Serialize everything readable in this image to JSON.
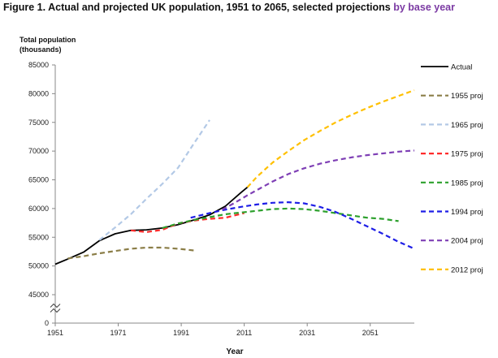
{
  "title_main": "Figure 1. Actual and projected UK population, 1951 to 2065, selected projections ",
  "title_highlight": "by base year",
  "chart_data": {
    "type": "line",
    "ylabel_line1": "Total population",
    "ylabel_line2": "(thousands)",
    "xlabel": "Year",
    "xlim": [
      1951,
      2065
    ],
    "ylim": [
      40000,
      85000
    ],
    "y_axis_break": true,
    "y_ticks": [
      0,
      45000,
      50000,
      55000,
      60000,
      65000,
      70000,
      75000,
      80000,
      85000
    ],
    "y_tick_labels": [
      "0",
      "45000",
      "50000",
      "55000",
      "60000",
      "65000",
      "70000",
      "75000",
      "80000",
      "85000"
    ],
    "x_ticks": [
      1951,
      1971,
      1991,
      2011,
      2031,
      2051
    ],
    "x_tick_labels": [
      "1951",
      "1971",
      "1991",
      "2011",
      "2031",
      "2051"
    ],
    "grid": false,
    "legend_position": "right",
    "series": [
      {
        "name": "Actual",
        "color": "#000000",
        "dash": "solid",
        "x": [
          1951,
          1955,
          1960,
          1965,
          1970,
          1975,
          1980,
          1985,
          1990,
          1995,
          2000,
          2005,
          2010,
          2012
        ],
        "y": [
          50300,
          51200,
          52400,
          54400,
          55600,
          56200,
          56300,
          56600,
          57200,
          58000,
          58900,
          60400,
          62800,
          63700
        ]
      },
      {
        "name": "1955 proj",
        "color": "#8b7e48",
        "dash": "dashed",
        "x": [
          1955,
          1960,
          1965,
          1970,
          1975,
          1980,
          1985,
          1990,
          1995
        ],
        "y": [
          51300,
          51700,
          52200,
          52600,
          53000,
          53200,
          53200,
          53000,
          52700
        ]
      },
      {
        "name": "1965 proj",
        "color": "#b3c9e6",
        "dash": "dashed",
        "x": [
          1965,
          1970,
          1975,
          1980,
          1985,
          1990,
          1995,
          2000
        ],
        "y": [
          54500,
          56700,
          59000,
          61700,
          64300,
          67100,
          71300,
          75400
        ]
      },
      {
        "name": "1975 proj",
        "color": "#ff2b2b",
        "dash": "dashed",
        "x": [
          1975,
          1980,
          1985,
          1990,
          1995,
          2000,
          2005,
          2011
        ],
        "y": [
          56200,
          55900,
          56300,
          57400,
          57900,
          58200,
          58400,
          59200
        ]
      },
      {
        "name": "1985 proj",
        "color": "#2ca02c",
        "dash": "dashed",
        "x": [
          1985,
          1990,
          1995,
          2000,
          2005,
          2010,
          2015,
          2020,
          2025,
          2030,
          2035,
          2040,
          2045,
          2050,
          2055,
          2060
        ],
        "y": [
          56600,
          57400,
          58000,
          58500,
          59000,
          59300,
          59600,
          59900,
          60000,
          59900,
          59600,
          59200,
          58800,
          58400,
          58200,
          57800
        ]
      },
      {
        "name": "1994 proj",
        "color": "#1e1ee6",
        "dash": "dashed",
        "x": [
          1994,
          2000,
          2005,
          2010,
          2015,
          2020,
          2025,
          2030,
          2035,
          2040,
          2045,
          2050,
          2055,
          2060,
          2065
        ],
        "y": [
          58400,
          59200,
          59800,
          60300,
          60700,
          61000,
          61100,
          60900,
          60300,
          59400,
          58200,
          56900,
          55600,
          54200,
          53000
        ]
      },
      {
        "name": "2004 proj",
        "color": "#7e3fb5",
        "dash": "dashed",
        "x": [
          2004,
          2008,
          2012,
          2016,
          2020,
          2025,
          2030,
          2035,
          2040,
          2045,
          2050,
          2055,
          2060,
          2065
        ],
        "y": [
          59800,
          61000,
          62300,
          63500,
          64700,
          66000,
          67000,
          67800,
          68400,
          68900,
          69300,
          69600,
          69900,
          70100
        ]
      },
      {
        "name": "2012 proj",
        "color": "#ffc000",
        "dash": "dashed",
        "x": [
          2012,
          2015,
          2020,
          2025,
          2030,
          2035,
          2040,
          2045,
          2050,
          2055,
          2060,
          2065
        ],
        "y": [
          63700,
          65500,
          68000,
          70000,
          71900,
          73500,
          75000,
          76300,
          77500,
          78600,
          79600,
          80600
        ]
      }
    ]
  }
}
